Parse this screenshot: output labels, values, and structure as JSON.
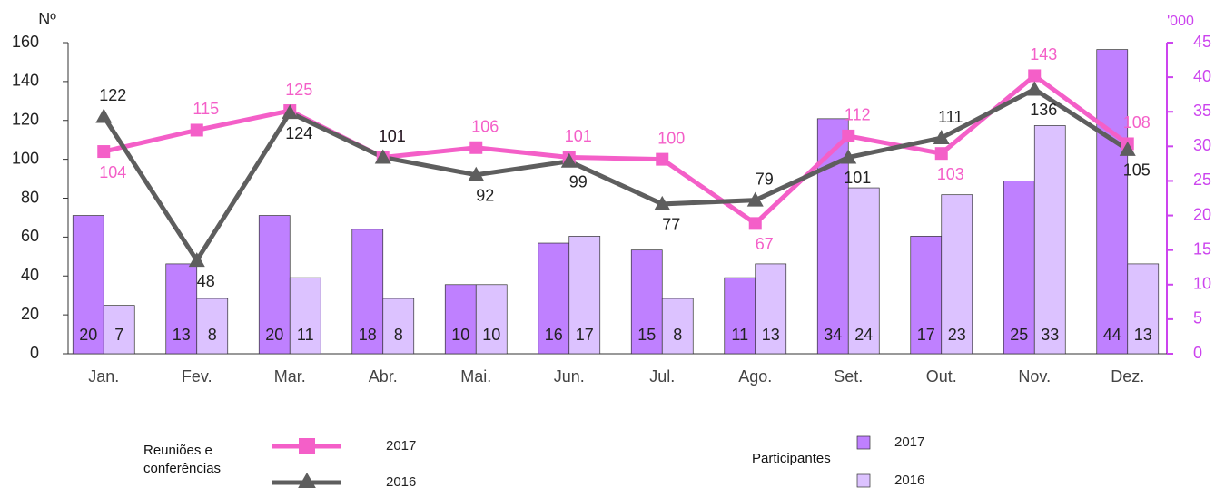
{
  "chart_data": {
    "type": "bar_line",
    "y_label": "Nº",
    "y2_label": "'000",
    "categories": [
      "Jan.",
      "Fev.",
      "Mar.",
      "Abr.",
      "Mai.",
      "Jun.",
      "Jul.",
      "Ago.",
      "Set.",
      "Out.",
      "Nov.",
      "Dez."
    ],
    "series": [
      {
        "name": "2017",
        "group": "Reuniões e conferências",
        "kind": "line",
        "marker": "square",
        "color": "#f45fc8",
        "axis": "y",
        "values": [
          104,
          115,
          125,
          101,
          106,
          101,
          100,
          67,
          112,
          103,
          143,
          108
        ]
      },
      {
        "name": "2016",
        "group": "Reuniões e conferências",
        "kind": "line",
        "marker": "triangle",
        "color": "#5e5e5e",
        "axis": "y",
        "values": [
          122,
          48,
          124,
          101,
          92,
          99,
          77,
          79,
          101,
          111,
          136,
          105
        ]
      },
      {
        "name": "2017",
        "group": "Participantes",
        "kind": "bar",
        "color": "#bf80ff",
        "axis": "y2",
        "values": [
          20,
          13,
          20,
          18,
          10,
          16,
          15,
          11,
          34,
          17,
          25,
          44
        ]
      },
      {
        "name": "2016",
        "group": "Participantes",
        "kind": "bar",
        "color": "#dcc2ff",
        "axis": "y2",
        "values": [
          7,
          8,
          11,
          8,
          10,
          17,
          8,
          13,
          24,
          23,
          33,
          13
        ]
      }
    ],
    "ylim": [
      0,
      160
    ],
    "yticks": [
      0,
      20,
      40,
      60,
      80,
      100,
      120,
      140,
      160
    ],
    "y2lim": [
      0,
      45
    ],
    "y2ticks": [
      0,
      5,
      10,
      15,
      20,
      25,
      30,
      35,
      40,
      45
    ],
    "y2_color": "#cc44ee"
  }
}
